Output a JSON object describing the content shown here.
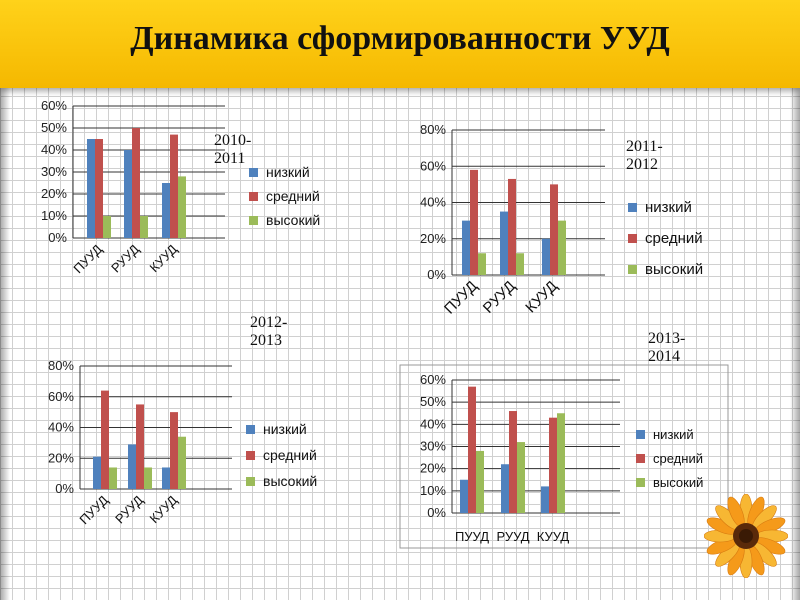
{
  "title": "Динамика сформированности УУД",
  "colors": {
    "low": "#4f81bd",
    "mid": "#c0504d",
    "high": "#9bbb59"
  },
  "legend": [
    "низкий",
    "средний",
    "высокий"
  ],
  "chart_data": [
    {
      "type": "bar",
      "year_label": "2010-2011",
      "categories": [
        "ПУУД",
        "РУУД",
        "КУУД"
      ],
      "series": [
        {
          "name": "низкий",
          "values": [
            45,
            40,
            25
          ]
        },
        {
          "name": "средний",
          "values": [
            45,
            50,
            47
          ]
        },
        {
          "name": "высокий",
          "values": [
            10,
            10,
            28
          ]
        }
      ],
      "ylim": [
        0,
        60
      ],
      "yticks": [
        "0%",
        "10%",
        "20%",
        "30%",
        "40%",
        "50%",
        "60%"
      ],
      "legend_position": "right"
    },
    {
      "type": "bar",
      "year_label": "2011-2012",
      "categories": [
        "ПУУД",
        "РУУД",
        "КУУД"
      ],
      "series": [
        {
          "name": "низкий",
          "values": [
            30,
            35,
            20
          ]
        },
        {
          "name": "средний",
          "values": [
            58,
            53,
            50
          ]
        },
        {
          "name": "высокий",
          "values": [
            12,
            12,
            30
          ]
        }
      ],
      "ylim": [
        0,
        80
      ],
      "yticks": [
        "0%",
        "20%",
        "40%",
        "60%",
        "80%"
      ],
      "legend_position": "right"
    },
    {
      "type": "bar",
      "year_label": "2012-2013",
      "categories": [
        "ПУУД",
        "РУУД",
        "КУУД"
      ],
      "series": [
        {
          "name": "низкий",
          "values": [
            21,
            29,
            14
          ]
        },
        {
          "name": "средний",
          "values": [
            64,
            55,
            50
          ]
        },
        {
          "name": "высокий",
          "values": [
            14,
            14,
            34
          ]
        }
      ],
      "ylim": [
        0,
        80
      ],
      "yticks": [
        "0%",
        "20%",
        "40%",
        "60%",
        "80%"
      ],
      "legend_position": "right"
    },
    {
      "type": "bar",
      "year_label": "2013-2014",
      "categories": [
        "ПУУД",
        "РУУД",
        "КУУД"
      ],
      "series": [
        {
          "name": "низкий",
          "values": [
            15,
            22,
            12
          ]
        },
        {
          "name": "средний",
          "values": [
            57,
            46,
            43
          ]
        },
        {
          "name": "высокий",
          "values": [
            28,
            32,
            45
          ]
        }
      ],
      "ylim": [
        0,
        60
      ],
      "yticks": [
        "0%",
        "10%",
        "20%",
        "30%",
        "40%",
        "50%",
        "60%"
      ],
      "legend_position": "right"
    }
  ]
}
